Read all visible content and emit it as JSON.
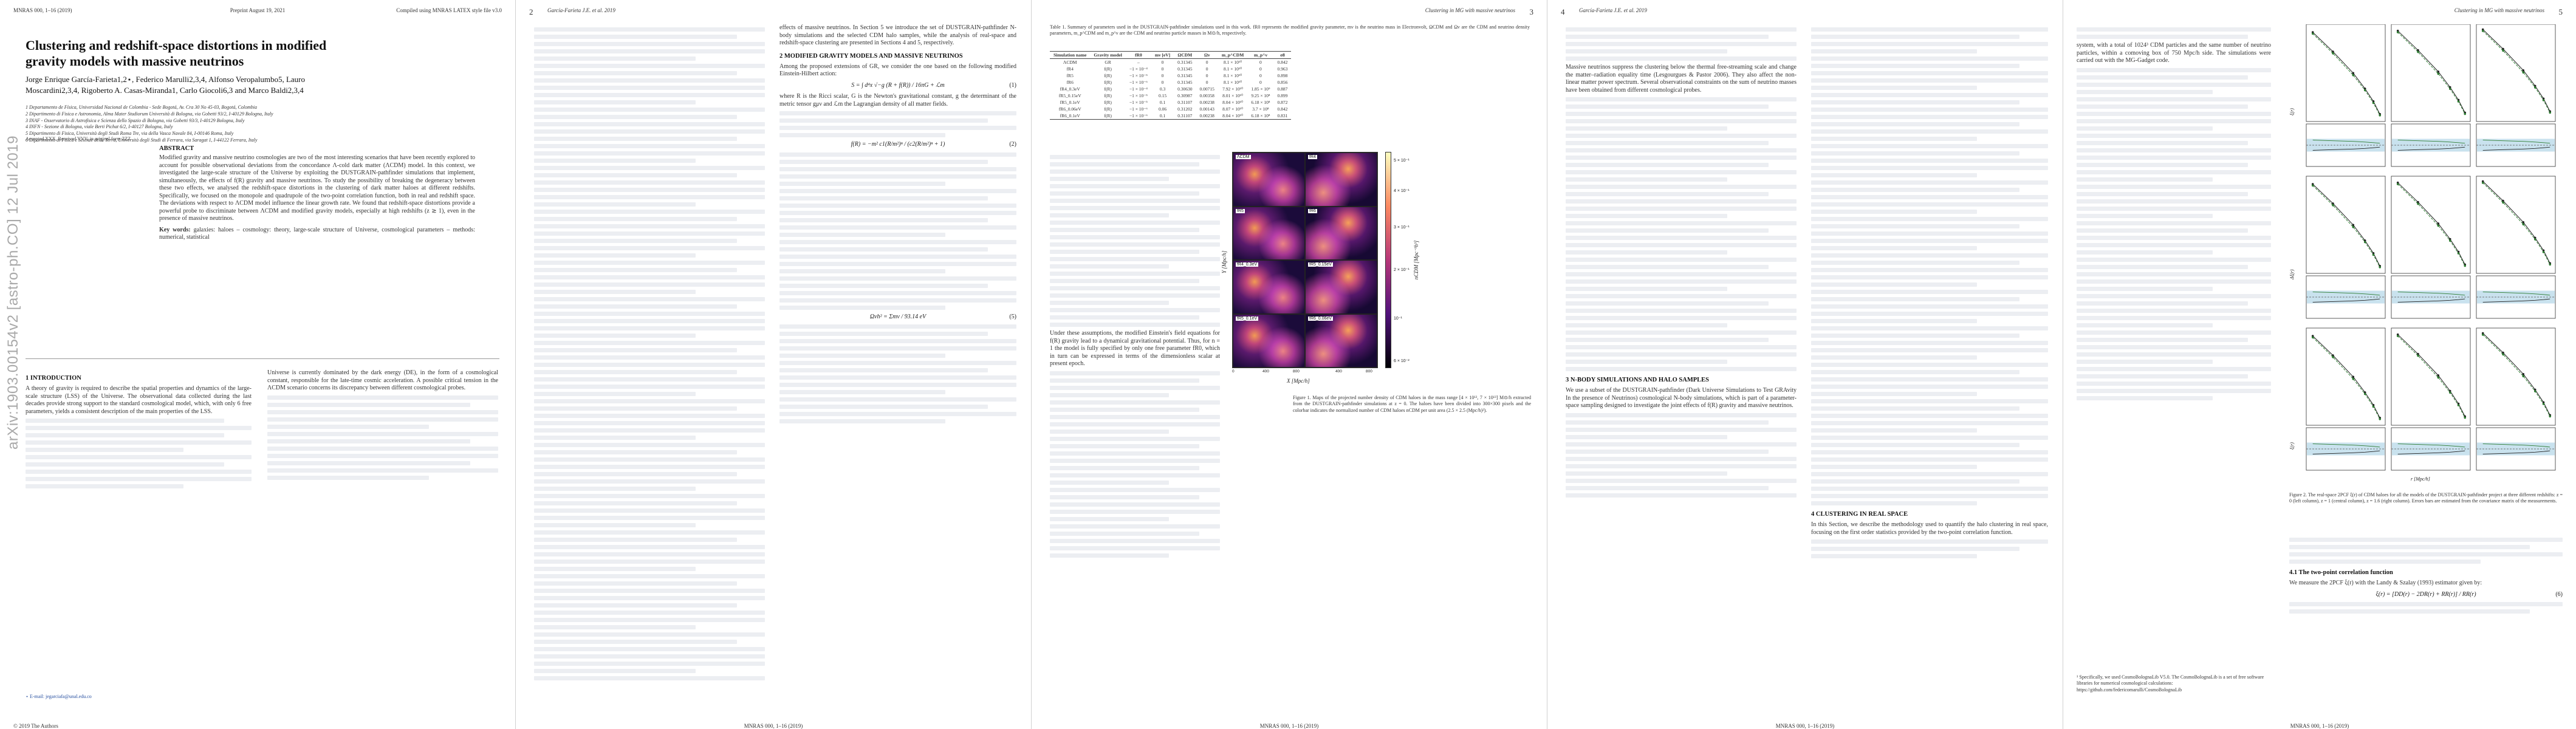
{
  "arxiv_stamp": "arXiv:1903.00154v2 [astro-ph.CO] 12 Jul 2019",
  "pages": {
    "p1": {
      "head_left": "MNRAS 000, 1–16 (2019)",
      "head_center": "Preprint August 19, 2021",
      "head_right": "Compiled using MNRAS LATEX style file v3.0",
      "title": "Clustering and redshift-space distortions in modified gravity models with massive neutrinos",
      "authors": "Jorge Enrique García-Farieta1,2⋆, Federico Marulli2,3,4, Alfonso Veropalumbo5, Lauro Moscardini2,3,4, Rigoberto A. Casas-Miranda1, Carlo Giocoli6,3 and Marco Baldi2,3,4",
      "affiliations": [
        "1 Departamento de Física, Universidad Nacional de Colombia - Sede Bogotá, Av. Cra 30 No 45-03, Bogotá, Colombia",
        "2 Dipartimento di Fisica e Astronomia, Alma Mater Studiorum Università di Bologna, via Gobetti 93/2, I-40129 Bologna, Italy",
        "3 INAF - Osservatorio di Astrofisica e Scienza dello Spazio di Bologna, via Gobetti 93/3, I-40129 Bologna, Italy",
        "4 INFN - Sezione di Bologna, viale Berti Pichat 6/2, I-40127 Bologna, Italy",
        "5 Dipartimento di Fisica, Università degli Studi Roma Tre, via della Vasca Navale 84, I-00146 Roma, Italy",
        "6 Dipartimento di Fisica e Scienze della Terra, Università degli Studi di Ferrara, via Saragat 1, I-44122 Ferrara, Italy"
      ],
      "accepted": "Accepted XXX. Received YYY; in original form ZZZ",
      "abstract_title": "ABSTRACT",
      "abstract": "Modified gravity and massive neutrino cosmologies are two of the most interesting scenarios that have been recently explored to account for possible observational deviations from the concordance Λ-cold dark matter (ΛCDM) model. In this context, we investigated the large-scale structure of the Universe by exploiting the DUSTGRAIN-pathfinder simulations that implement, simultaneously, the effects of f(R) gravity and massive neutrinos. To study the possibility of breaking the degeneracy between these two effects, we analysed the redshift-space distortions in the clustering of dark matter haloes at different redshifts. Specifically, we focused on the monopole and quadrupole of the two-point correlation function, both in real and redshift space. The deviations with respect to ΛCDM model influence the linear growth rate. We found that redshift-space distortions provide a powerful probe to discriminate between ΛCDM and modified gravity models, especially at high redshifts (z ≳ 1), even in the presence of massive neutrinos.",
      "keywords_label": "Key words:",
      "keywords": "galaxies: haloes – cosmology: theory, large-scale structure of Universe, cosmological parameters – methods: numerical, statistical",
      "sec1_title": "1 INTRODUCTION",
      "intro": "A theory of gravity is required to describe the spatial properties and dynamics of the large-scale structure (LSS) of the Universe. The observational data collected during the last decades provide strong support to the standard cosmological model, which, with only 6 free parameters, yields a consistent description of the main properties of the LSS.",
      "col2_text": "Universe is currently dominated by the dark energy (DE), in the form of a cosmological constant, responsible for the late-time cosmic acceleration. A possible critical tension in the ΛCDM scenario concerns its discrepancy between different cosmological probes.",
      "footnote": "⋆ E-mail: jegarciafa@unal.edu.co",
      "copyright": "© 2019 The Authors"
    },
    "p2": {
      "head_left": "2",
      "head_center": "García-Farieta J.E. et al. 2019",
      "text_a": "effects of massive neutrinos. In Section 5 we introduce the set of DUSTGRAIN-pathfinder N-body simulations and the selected CDM halo samples, while the analysis of real-space and redshift-space clustering are presented in Sections 4 and 5, respectively.",
      "sec2_title": "2 MODIFIED GRAVITY MODELS AND MASSIVE NEUTRINOS",
      "text_b": "Among the proposed extensions of GR, we consider the one based on the following modified Einstein-Hilbert action:",
      "eq1": "S = ∫ d⁴x √−g (R + f(R)) / 16πG + ℒm",
      "eq2": "f(R) = −m² c1(R/m²)ⁿ / (c2(R/m²)ⁿ + 1)",
      "eq3": "Ωνh² = Σmν / 93.14 eV",
      "text_c": "where R is the Ricci scalar, G is the Newton's gravitational constant, g the determinant of the metric tensor gμν and ℒm the Lagrangian density of all matter fields.",
      "copyright": "MNRAS 000, 1–16 (2019)"
    },
    "p3": {
      "head_center": "Clustering in MG with massive neutrinos",
      "head_right": "3",
      "table_caption": "Table 1. Summary of parameters used in the DUSTGRAIN-pathfinder simulations used in this work. fR0 represents the modified gravity parameter, mν is the neutrino mass in Electronvolt, ΩCDM and Ων are the CDM and neutrino density parameters, m_p^CDM and m_p^ν are the CDM and neutrino particle masses in M⊙/h, respectively.",
      "table_headers": [
        "Simulation name",
        "Gravity model",
        "fR0",
        "mν [eV]",
        "ΩCDM",
        "Ων",
        "m_p^CDM",
        "m_p^ν",
        "σ8"
      ],
      "table_rows": [
        [
          "ΛCDM",
          "GR",
          "–",
          "0",
          "0.31345",
          "0",
          "8.1 × 10¹⁰",
          "0",
          "0.842"
        ],
        [
          "fR4",
          "f(R)",
          "−1 × 10⁻⁴",
          "0",
          "0.31345",
          "0",
          "8.1 × 10¹⁰",
          "0",
          "0.963"
        ],
        [
          "fR5",
          "f(R)",
          "−1 × 10⁻⁵",
          "0",
          "0.31345",
          "0",
          "8.1 × 10¹⁰",
          "0",
          "0.898"
        ],
        [
          "fR6",
          "f(R)",
          "−1 × 10⁻⁶",
          "0",
          "0.31345",
          "0",
          "8.1 × 10¹⁰",
          "0",
          "0.856"
        ],
        [
          "fR4_0.3eV",
          "f(R)",
          "−1 × 10⁻⁴",
          "0.3",
          "0.30630",
          "0.00715",
          "7.92 × 10¹⁰",
          "1.85 × 10⁹",
          "0.887"
        ],
        [
          "fR5_0.15eV",
          "f(R)",
          "−1 × 10⁻⁵",
          "0.15",
          "0.30987",
          "0.00358",
          "8.01 × 10¹⁰",
          "9.25 × 10⁸",
          "0.899"
        ],
        [
          "fR5_0.1eV",
          "f(R)",
          "−1 × 10⁻⁵",
          "0.1",
          "0.31107",
          "0.00238",
          "8.04 × 10¹⁰",
          "6.18 × 10⁸",
          "0.872"
        ],
        [
          "fR6_0.06eV",
          "f(R)",
          "−1 × 10⁻⁶",
          "0.06",
          "0.31202",
          "0.00143",
          "8.07 × 10¹⁰",
          "3.7 × 10⁸",
          "0.842"
        ],
        [
          "fR6_0.1eV",
          "f(R)",
          "−1 × 10⁻⁶",
          "0.1",
          "0.31107",
          "0.00238",
          "8.04 × 10¹⁰",
          "6.18 × 10⁸",
          "0.831"
        ]
      ],
      "panels": [
        "ΛCDM",
        "fR4",
        "fR5",
        "fR6",
        "fR4_0.3eV",
        "fR5_0.15eV",
        "fR5_0.1eV",
        "fR6_0.06eV"
      ],
      "cbar_ticks": [
        "5 × 10⁻¹",
        "4 × 10⁻¹",
        "3 × 10⁻¹",
        "2 × 10⁻¹",
        "10⁻¹",
        "6 × 10⁻²"
      ],
      "cbar_title": "nCDM [Mpc⁻³h³]",
      "xaxis_title": "X [Mpc/h]",
      "yaxis_title": "Y [Mpc/h]",
      "axis_ticks": [
        "0",
        "200",
        "400",
        "600",
        "800"
      ],
      "figure_caption": "Figure 1. Maps of the projected number density of CDM haloes in the mass range [4 × 10¹², 7 × 10¹³] M⊙/h extracted from the DUSTGRAIN-pathfinder simulations at z = 0. The haloes have been divided into 300×300 pixels and the colorbar indicates the normalized number of CDM haloes nCDM per unit area (2.5 × 2.5 (Mpc/h)²).",
      "text": "Under these assumptions, the modified Einstein's field equations for f(R) gravity lead to a dynamical gravitational potential. Thus, for n = 1 the model is fully specified by only one free parameter fR0, which in turn can be expressed in terms of the dimensionless scalar at present epoch.",
      "copyright": "MNRAS 000, 1–16 (2019)"
    },
    "p4": {
      "head_left": "4",
      "head_center": "García-Farieta J.E. et al. 2019",
      "text_a": "Massive neutrinos suppress the clustering below the thermal free-streaming scale and change the matter–radiation equality time (Lesgourgues & Pastor 2006). They also affect the non-linear matter power spectrum. Several observational constraints on the sum of neutrino masses have been obtained from different cosmological probes.",
      "sec3_title": "3 N-BODY SIMULATIONS AND HALO SAMPLES",
      "text_b": "We use a subset of the DUSTGRAIN-pathfinder (Dark Universe Simulations to Test GRAvity In the presence of Neutrinos) cosmological N-body simulations, which is part of a parameter-space sampling designed to investigate the joint effects of f(R) gravity and massive neutrinos.",
      "sec4_title": "4 CLUSTERING IN REAL SPACE",
      "text_c": "In this Section, we describe the methodology used to quantify the halo clustering in real space, focusing on the first order statistics provided by the two-point correlation function.",
      "copyright": "MNRAS 000, 1–16 (2019)"
    },
    "p5": {
      "head_center": "Clustering in MG with massive neutrinos",
      "head_right": "5",
      "text_a": "system, with a total of 1024³ CDM particles and the same number of neutrino particles, within a comoving box of 750 Mpc/h side. The simulations were carried out with the MG-Gadget code.",
      "ylabel_top": "ξ(r)",
      "ylabel_mid": "Δξ(r)",
      "xlabel": "r [Mpc/h]",
      "figure_caption": "Figure 2. The real-space 2PCF ξ(r) of CDM haloes for all the models of the DUSTGRAIN-pathfinder project at three different redshifts: z = 0 (left column), z = 1 (central column), z = 1.6 (right column). Errors bars are estimated from the covariance matrix of the measurements.",
      "sec41_title": "4.1 The two-point correlation function",
      "text_b": "We measure the 2PCF ξ(r) with the Landy & Szalay (1993) estimator given by:",
      "eq": "ξ(r) = [DD(r) − 2DR(r) + RR(r)] / RR(r)",
      "footnote": "¹ Specifically, we used CosmoBolognaLib V5.0. The CosmoBolognaLib is a set of free software libraries for numerical cosmological calculations: https://github.com/federicomarulli/CosmoBolognaLib",
      "copyright": "MNRAS 000, 1–16 (2019)"
    }
  },
  "chart_data": {
    "type": "line",
    "title": "",
    "xlabel": "r [Mpc/h]",
    "ylabel": "ξ(r)",
    "xscale": "log",
    "x": [
      5,
      10,
      20,
      30,
      40,
      50
    ],
    "series": [
      {
        "name": "ΛCDM",
        "values": [
          2.6,
          0.9,
          0.28,
          0.12,
          0.06,
          0.03
        ]
      },
      {
        "name": "fR4",
        "values": [
          2.4,
          0.82,
          0.25,
          0.11,
          0.055,
          0.028
        ]
      }
    ],
    "colors": {
      "ΛCDM": "#222222",
      "fR4": "#2e7d32",
      "fR5": "#1565c0",
      "band": "#9ccbe0"
    }
  }
}
